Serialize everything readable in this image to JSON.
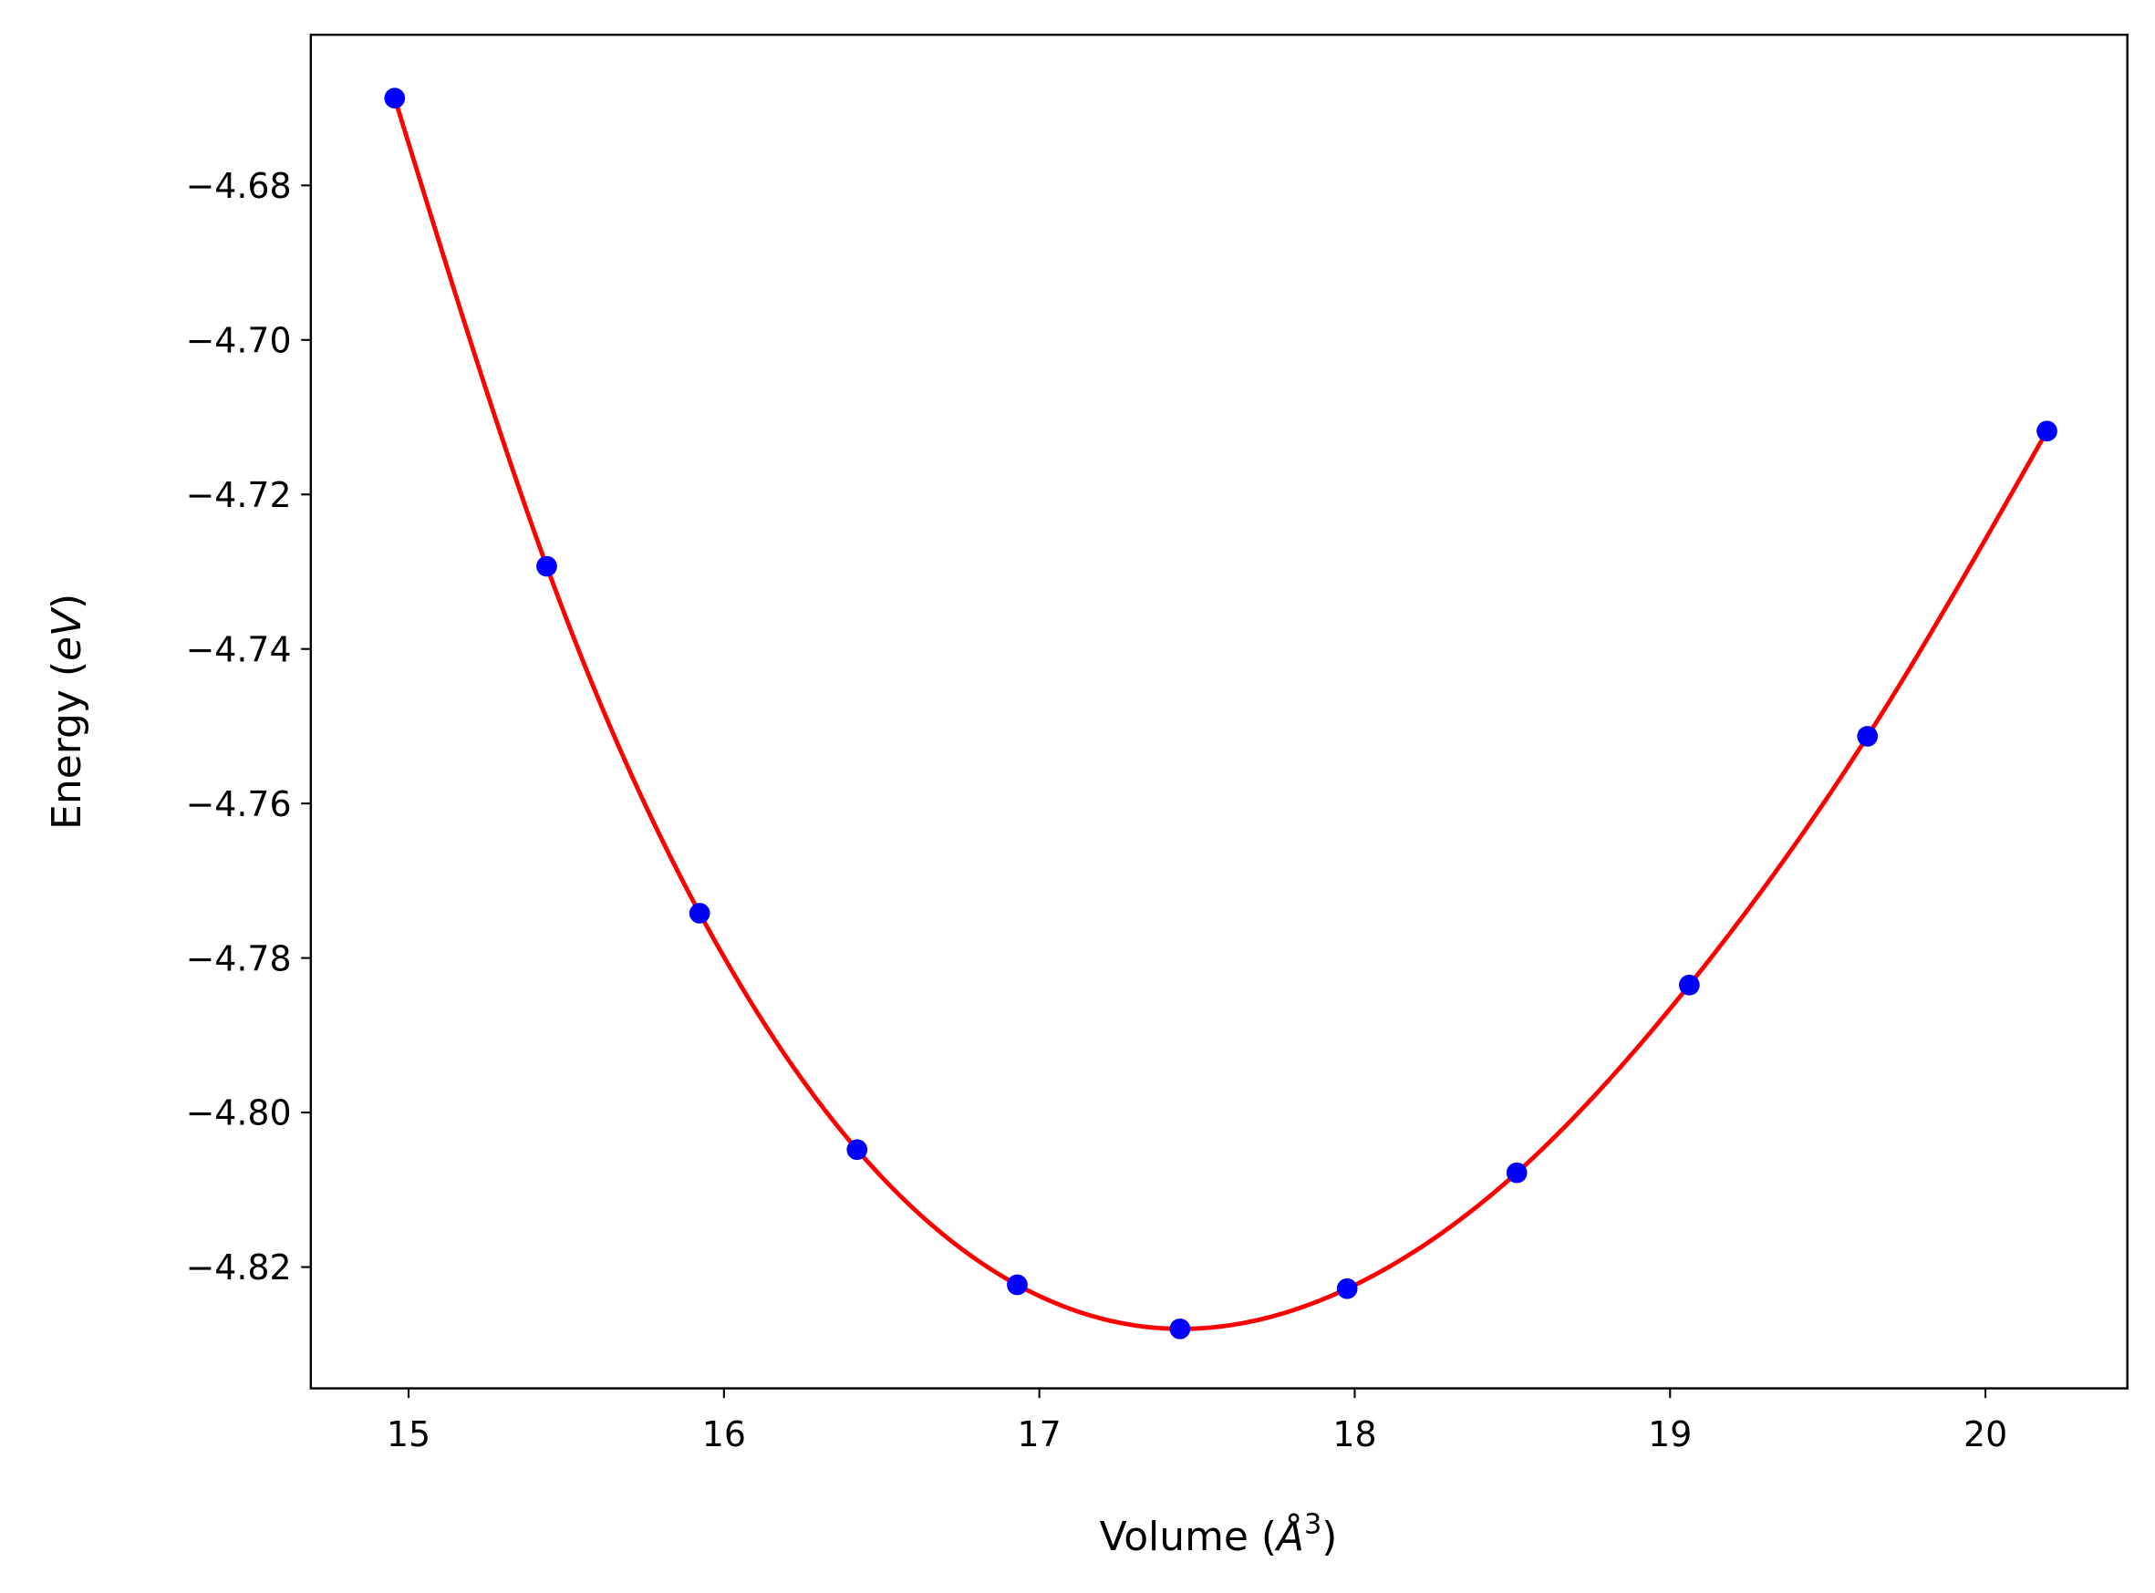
{
  "chart_data": {
    "type": "line",
    "title": "",
    "xlabel": "Volume (Å³)",
    "xlabel_parts": {
      "prefix": "Volume (",
      "symbol": "Å",
      "sup": "3",
      "suffix": ")"
    },
    "ylabel": "Energy (eV)",
    "ylabel_parts": {
      "prefix": "Energy (",
      "italic": "eV",
      "suffix": ")"
    },
    "xlim": [
      14.69,
      20.45
    ],
    "ylim": [
      -4.8357,
      -4.6605
    ],
    "xticks": [
      15,
      16,
      17,
      18,
      19,
      20
    ],
    "xtick_labels": [
      "15",
      "16",
      "17",
      "18",
      "19",
      "20"
    ],
    "yticks": [
      -4.68,
      -4.7,
      -4.72,
      -4.74,
      -4.76,
      -4.78,
      -4.8,
      -4.82
    ],
    "ytick_labels": [
      "−4.68",
      "−4.70",
      "−4.72",
      "−4.74",
      "−4.76",
      "−4.78",
      "−4.80",
      "−4.82"
    ],
    "grid": false,
    "series": [
      {
        "kind": "scatter",
        "color": "#0000ff",
        "x": [
          14.956,
          15.438,
          15.923,
          16.422,
          16.93,
          17.446,
          17.976,
          18.514,
          19.061,
          19.626,
          20.195
        ],
        "y": [
          -4.6687,
          -4.7293,
          -4.7742,
          -4.8048,
          -4.8223,
          -4.828,
          -4.8228,
          -4.8078,
          -4.7835,
          -4.7513,
          -4.7118
        ]
      },
      {
        "kind": "fit-line",
        "color": "#ff0000"
      }
    ]
  }
}
